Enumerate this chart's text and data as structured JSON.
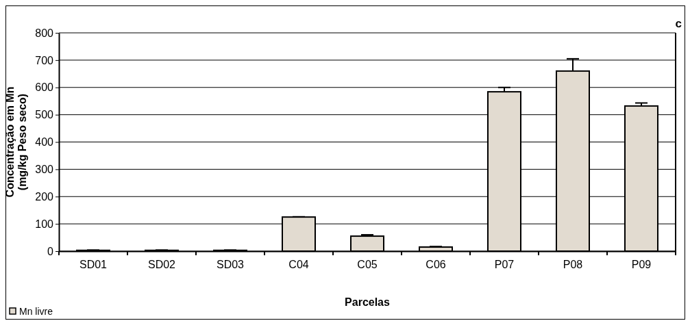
{
  "chart_data": {
    "type": "bar",
    "xlabel": "Parcelas",
    "ylabel": "Concentração em Mn\n(mg/kg Peso seco)",
    "categories": [
      "SD01",
      "SD02",
      "SD03",
      "C04",
      "C05",
      "C06",
      "P07",
      "P08",
      "P09"
    ],
    "series": [
      {
        "name": "Mn livre",
        "color": "#e2dbd0",
        "values": [
          3,
          3,
          3,
          125,
          55,
          15,
          584,
          660,
          532
        ],
        "errors": [
          [
            3,
            4
          ],
          [
            3,
            4
          ],
          [
            3,
            4
          ],
          [
            125,
            126
          ],
          [
            55,
            60
          ],
          [
            15,
            17
          ],
          [
            584,
            600
          ],
          [
            660,
            705
          ],
          [
            532,
            543
          ]
        ]
      }
    ],
    "ylim": [
      0,
      800
    ],
    "yticks": [
      0,
      100,
      200,
      300,
      400,
      500,
      600,
      700,
      800
    ],
    "grid": "y",
    "legend": "bottom left",
    "annotations": [
      "c"
    ]
  }
}
